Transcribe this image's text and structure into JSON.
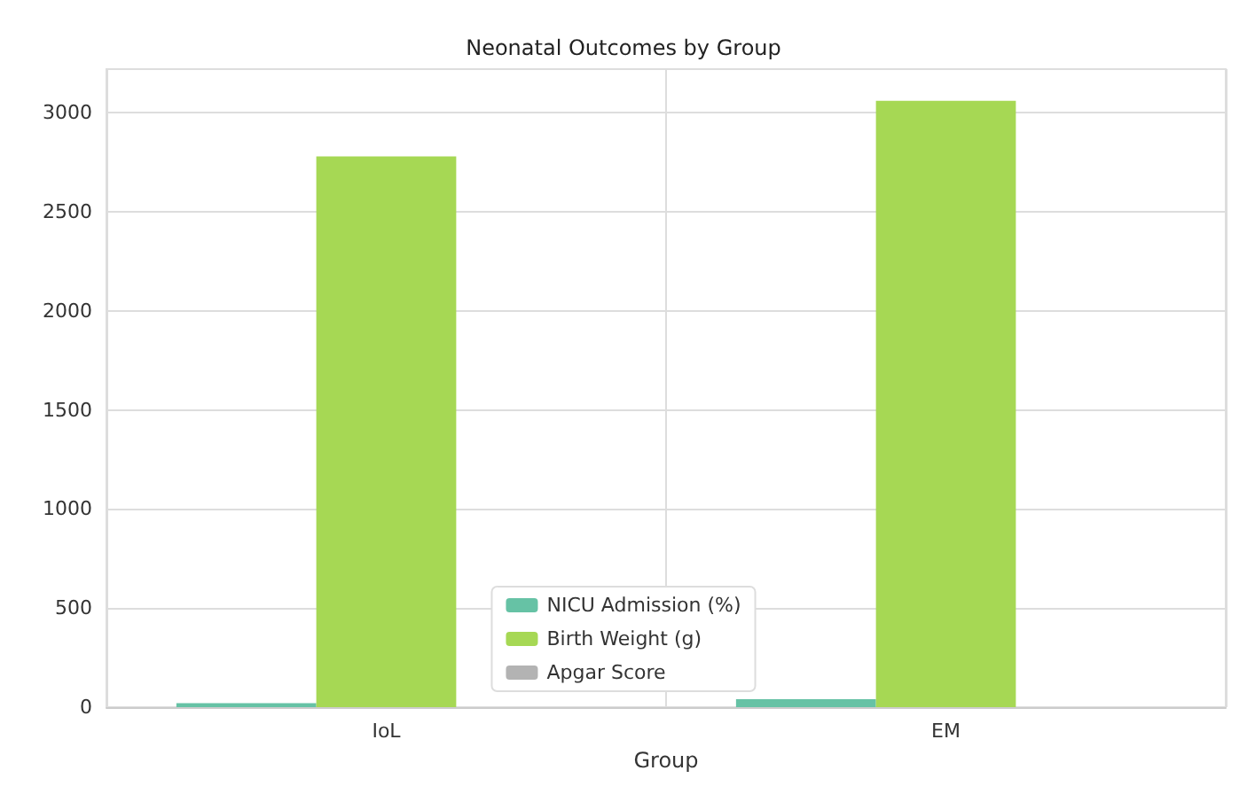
{
  "chart_data": {
    "type": "bar",
    "title": "Neonatal Outcomes by Group",
    "xlabel": "Group",
    "categories": [
      "IoL",
      "EM"
    ],
    "series": [
      {
        "name": "NICU Admission (%)",
        "color": "#66c2a5",
        "values": [
          20,
          40
        ]
      },
      {
        "name": "Birth Weight (g)",
        "color": "#a6d854",
        "values": [
          2780,
          3060
        ]
      },
      {
        "name": "Apgar Score",
        "color": "#b3b3b3",
        "values": [
          null,
          null
        ]
      }
    ],
    "ylim": [
      0,
      3220
    ],
    "yticks": [
      0,
      500,
      1000,
      1500,
      2000,
      2500,
      3000
    ],
    "grid": true,
    "legend": "bottom"
  }
}
